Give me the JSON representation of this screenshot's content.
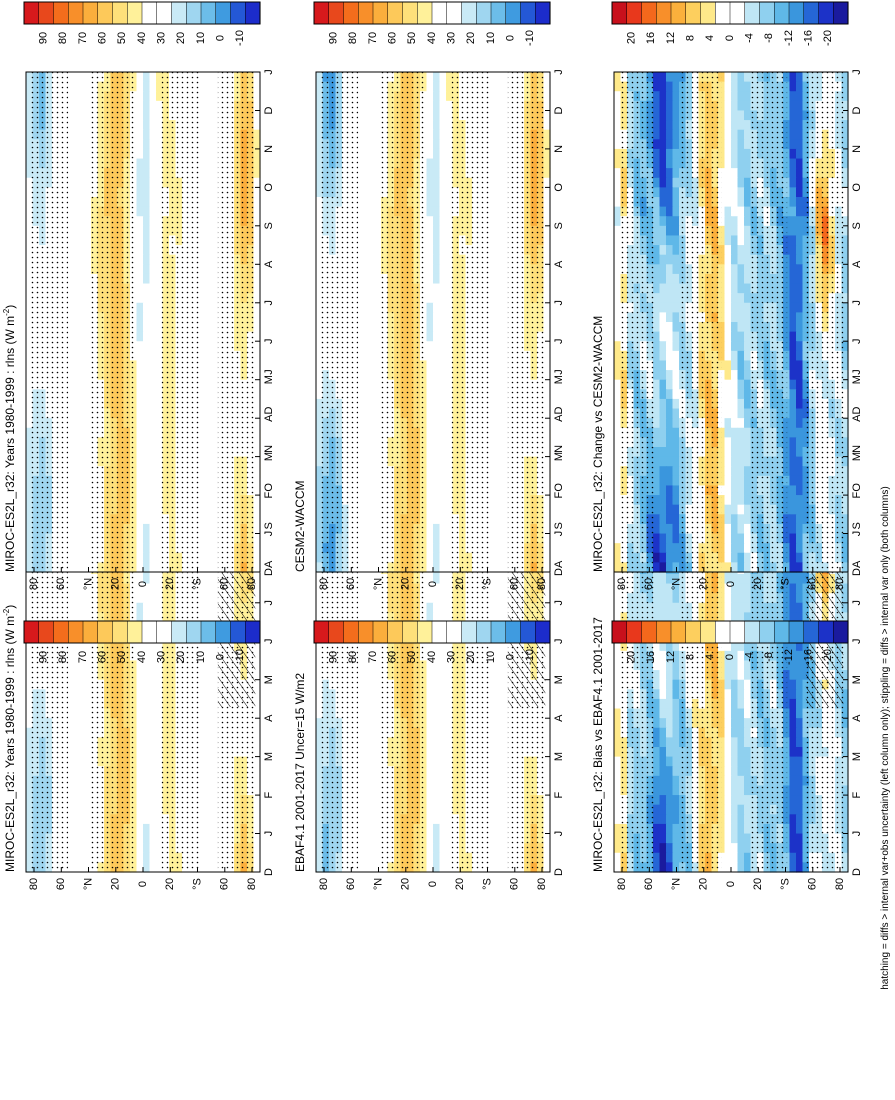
{
  "figure": {
    "footnote": "hatching = diffs > internal var+obs uncertainty (left column only); stippling = diffs > internal var only (both columns)"
  },
  "axes": {
    "months": [
      "D",
      "J",
      "F",
      "M",
      "A",
      "M",
      "J",
      "J",
      "A",
      "S",
      "O",
      "N",
      "D",
      "J"
    ],
    "lat_ticks": [
      "80",
      "60",
      "°N",
      "20",
      "0",
      "20",
      "°S",
      "60",
      "80"
    ]
  },
  "palettes": {
    "abs": [
      "#d7191c",
      "#e8481c",
      "#f46d1c",
      "#f88f2a",
      "#fbae3c",
      "#fdc95a",
      "#fee07a",
      "#fff19a",
      "#ffffff",
      "#ffffff",
      "#c9eaf6",
      "#9fd6f0",
      "#6cbde9",
      "#3f9be0",
      "#2458d6",
      "#1c2ccb"
    ],
    "diff": [
      "#c8101c",
      "#e8381c",
      "#f4681c",
      "#f88f2a",
      "#fbb03c",
      "#fdcf5e",
      "#fee98a",
      "#ffffff",
      "#ffffff",
      "#bfe6f5",
      "#8fd0ef",
      "#5fb8e8",
      "#3a96dd",
      "#2566d6",
      "#1c32c8",
      "#1a1a9e"
    ]
  },
  "chart_data": [
    {
      "id": "obs-model",
      "type": "heatmap",
      "title": "MIROC-ES2L_r32: Years 1980-1999 : rlns (W m",
      "title_sup": "-2",
      "title_close": ")",
      "palette": "abs",
      "colorbar_ticks": [
        "90",
        "80",
        "70",
        "60",
        "50",
        "40",
        "30",
        "20",
        "10",
        "0",
        "-10"
      ],
      "hatching": true,
      "cold_pole_min": 20
    },
    {
      "id": "obs-ref",
      "type": "heatmap",
      "title": "EBAF4.1 2001-2017 Uncer=15 W/m2",
      "palette": "abs",
      "colorbar_ticks": [
        "90",
        "80",
        "70",
        "60",
        "50",
        "40",
        "30",
        "20",
        "10",
        "0",
        "-10"
      ],
      "hatching": true,
      "cold_pole_min": 22
    },
    {
      "id": "bias",
      "type": "heatmap",
      "title": "MIROC-ES2L_r32: Bias vs EBAF4.1 2001-2017",
      "palette": "diff",
      "colorbar_ticks": [
        "20",
        "16",
        "12",
        "8",
        "4",
        "0",
        "-4",
        "-8",
        "-12",
        "-16",
        "-20"
      ],
      "hatching": true
    },
    {
      "id": "model-repeat",
      "type": "heatmap",
      "title": "MIROC-ES2L_r32: Years 1980-1999 : rlns (W m",
      "title_sup": "-2",
      "title_close": ")",
      "palette": "abs",
      "colorbar_ticks": [
        "90",
        "80",
        "70",
        "60",
        "50",
        "40",
        "30",
        "20",
        "10",
        "0",
        "-10"
      ],
      "hatching": false,
      "cold_pole_min": 20
    },
    {
      "id": "model-2",
      "type": "heatmap",
      "title": "CESM2-WACCM",
      "palette": "abs",
      "colorbar_ticks": [
        "90",
        "80",
        "70",
        "60",
        "50",
        "40",
        "30",
        "20",
        "10",
        "0",
        "-10"
      ],
      "hatching": false,
      "cold_pole_min": 30
    },
    {
      "id": "change",
      "type": "heatmap",
      "title": "MIROC-ES2L_r32: Change vs CESM2-WACCM",
      "palette": "diff",
      "colorbar_ticks": [
        "20",
        "16",
        "12",
        "8",
        "4",
        "0",
        "-4",
        "-8",
        "-12",
        "-16",
        "-20"
      ],
      "hatching": false
    }
  ]
}
